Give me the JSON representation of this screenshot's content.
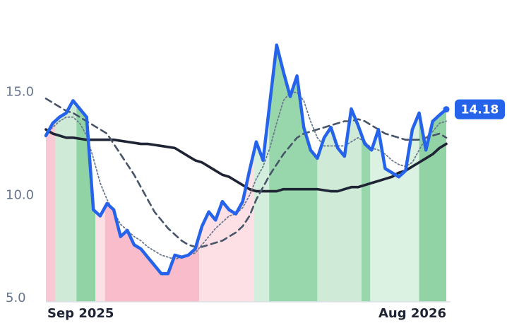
{
  "chart_data": {
    "type": "line",
    "categories": [
      "Sep 2025",
      null,
      null,
      null,
      null,
      null,
      null,
      null,
      null,
      null,
      null,
      null,
      null,
      null,
      null,
      null,
      null,
      null,
      null,
      null,
      null,
      null,
      null,
      null,
      null,
      null,
      null,
      null,
      null,
      null,
      null,
      null,
      null,
      null,
      null,
      null,
      null,
      null,
      null,
      null,
      null,
      null,
      null,
      null,
      null,
      null,
      null,
      null,
      null,
      null,
      null,
      null,
      null,
      null,
      null,
      null,
      null,
      null,
      null,
      "Aug 2026"
    ],
    "series": [
      {
        "color": "#2563eb",
        "style": "solid",
        "width": 4.5,
        "values": [
          12.9,
          13.5,
          13.8,
          14.0,
          14.6,
          14.2,
          13.8,
          9.3,
          9.0,
          9.6,
          9.3,
          8.0,
          8.3,
          7.6,
          7.4,
          7.0,
          6.6,
          6.2,
          6.2,
          7.1,
          7.0,
          7.1,
          7.4,
          8.5,
          9.2,
          8.8,
          9.7,
          9.3,
          9.1,
          9.7,
          11.2,
          12.6,
          11.7,
          14.5,
          17.3,
          16.0,
          14.8,
          15.8,
          13.3,
          12.2,
          11.8,
          12.8,
          13.3,
          12.3,
          11.9,
          14.2,
          13.4,
          12.5,
          12.2,
          13.2,
          11.3,
          11.1,
          10.9,
          11.2,
          13.2,
          14.0,
          12.2,
          13.6,
          13.9,
          14.18
        ]
      },
      {
        "color": "#6b7a8c",
        "style": "dotted",
        "width": 1.8,
        "values": [
          13.0,
          13.3,
          13.6,
          13.8,
          13.8,
          13.5,
          12.9,
          11.8,
          10.6,
          9.8,
          9.2,
          8.6,
          8.3,
          8.0,
          7.8,
          7.5,
          7.3,
          7.1,
          7.0,
          6.9,
          7.0,
          7.1,
          7.2,
          7.6,
          8.0,
          8.4,
          8.7,
          9.0,
          9.1,
          9.4,
          10.0,
          10.8,
          11.4,
          12.3,
          13.5,
          14.6,
          15.0,
          15.0,
          14.6,
          13.6,
          12.8,
          12.4,
          12.4,
          12.4,
          12.4,
          12.6,
          12.8,
          12.6,
          12.3,
          12.2,
          12.0,
          11.7,
          11.5,
          11.4,
          11.6,
          12.2,
          12.8,
          13.1,
          13.5,
          13.6
        ]
      },
      {
        "color": "#465568",
        "style": "dashed",
        "width": 2.6,
        "values": [
          14.7,
          14.5,
          14.3,
          14.1,
          14.0,
          13.8,
          13.6,
          13.4,
          13.2,
          13.0,
          12.5,
          12.0,
          11.5,
          11.0,
          10.4,
          9.8,
          9.2,
          8.8,
          8.4,
          8.1,
          7.8,
          7.6,
          7.5,
          7.5,
          7.6,
          7.7,
          7.8,
          8.0,
          8.2,
          8.5,
          9.0,
          9.8,
          10.4,
          11.0,
          11.5,
          12.0,
          12.4,
          12.8,
          13.0,
          13.1,
          13.2,
          13.3,
          13.4,
          13.5,
          13.6,
          13.6,
          13.7,
          13.6,
          13.4,
          13.2,
          13.0,
          12.9,
          12.8,
          12.7,
          12.7,
          12.7,
          12.8,
          12.9,
          13.0,
          12.8
        ]
      },
      {
        "color": "#1e2433",
        "style": "solid",
        "width": 3.6,
        "values": [
          13.2,
          13.0,
          12.9,
          12.8,
          12.8,
          12.75,
          12.7,
          12.7,
          12.7,
          12.7,
          12.7,
          12.65,
          12.6,
          12.55,
          12.5,
          12.5,
          12.45,
          12.4,
          12.35,
          12.3,
          12.1,
          11.9,
          11.7,
          11.6,
          11.4,
          11.2,
          11.0,
          10.9,
          10.7,
          10.5,
          10.3,
          10.2,
          10.2,
          10.2,
          10.2,
          10.3,
          10.3,
          10.3,
          10.3,
          10.3,
          10.3,
          10.25,
          10.2,
          10.2,
          10.3,
          10.4,
          10.4,
          10.5,
          10.6,
          10.7,
          10.8,
          10.9,
          11.1,
          11.2,
          11.4,
          11.6,
          11.8,
          12.0,
          12.3,
          12.5
        ]
      }
    ],
    "bands": [
      {
        "from": 0,
        "to": 1.4,
        "color": "#f8c9d4"
      },
      {
        "from": 1.4,
        "to": 4.5,
        "color": "#cfebd8"
      },
      {
        "from": 4.5,
        "to": 7.3,
        "color": "#92d3a6"
      },
      {
        "from": 7.3,
        "to": 8.7,
        "color": "#fde0e6"
      },
      {
        "from": 8.7,
        "to": 22.6,
        "color": "#f8bccb"
      },
      {
        "from": 22.6,
        "to": 30.7,
        "color": "#fde0e6"
      },
      {
        "from": 30.7,
        "to": 32.9,
        "color": "#d4eedd"
      },
      {
        "from": 32.9,
        "to": 40,
        "color": "#98d6ab"
      },
      {
        "from": 40,
        "to": 46.5,
        "color": "#cfebd8"
      },
      {
        "from": 46.5,
        "to": 47.8,
        "color": "#98d6ab"
      },
      {
        "from": 47.8,
        "to": 55,
        "color": "#dbf1e2"
      },
      {
        "from": 55,
        "to": 59,
        "color": "#92d3a6"
      }
    ],
    "ylim": [
      4.83,
      18.8
    ],
    "yticks": [
      {
        "value": 5,
        "label": "5.0"
      },
      {
        "value": 10,
        "label": "10.0"
      },
      {
        "value": 15,
        "label": "15.0"
      }
    ]
  }
}
